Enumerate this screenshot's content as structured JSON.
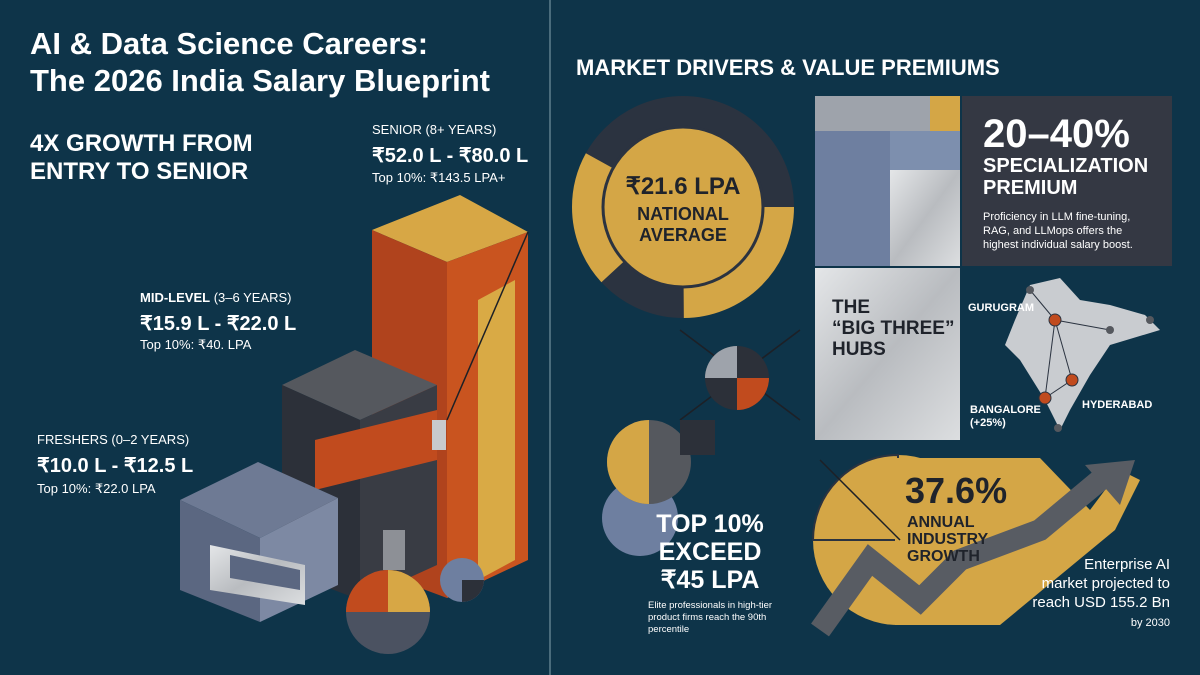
{
  "header": {
    "title": [
      "AI & Data Science Careers:",
      "The 2026 India Salary Blueprint"
    ],
    "headline": [
      "4X GROWTH FROM",
      "ENTRY TO SENIOR"
    ]
  },
  "levels": {
    "senior": {
      "label": "SENIOR (8+ YEARS)",
      "range": "₹52.0 L - ₹80.0 L",
      "top": "Top 10%: ₹143.5 LPA+"
    },
    "mid": {
      "label_bold": "MID-LEVEL",
      "label_rest": "(3–6 YEARS)",
      "range": "₹15.9 L - ₹22.0 L",
      "top": "Top 10%: ₹40. LPA"
    },
    "freshers": {
      "label": "FRESHERS (0–2 YEARS)",
      "range": "₹10.0 L - ₹12.5 L",
      "top": "Top 10%: ₹22.0 LPA"
    }
  },
  "market": {
    "title": "MARKET DRIVERS & VALUE PREMIUMS",
    "national": {
      "value": "₹21.6 LPA",
      "label": [
        "NATIONAL",
        "AVERAGE"
      ]
    },
    "premium": {
      "value": "20–40%",
      "label": [
        "SPECIALIZATION",
        "PREMIUM"
      ],
      "text": [
        "Proficiency in LLM fine-tuning,",
        "RAG, and LLMops offers the",
        "highest individual salary boost."
      ]
    },
    "hubs": {
      "title": [
        "THE",
        "“BIG THREE”",
        "HUBS"
      ],
      "cities": {
        "gurugram": "GURUGRAM",
        "bangalore": [
          "BANGALORE",
          "(+25%)"
        ],
        "hyderabad": "HYDERABAD"
      }
    },
    "top10": {
      "title": [
        "TOP 10%",
        "EXCEED",
        "₹45 LPA"
      ],
      "text": [
        "Elite professionals in high-tier",
        "product firms reach the 90th",
        "percentile"
      ]
    },
    "growth": {
      "value": "37.6%",
      "label": [
        "ANNUAL",
        "INDUSTRY",
        "GROWTH"
      ]
    },
    "projection": {
      "text": [
        "Enterprise AI",
        "market projected to",
        "reach USD 155.2 Bn"
      ],
      "note": "by 2030"
    }
  }
}
